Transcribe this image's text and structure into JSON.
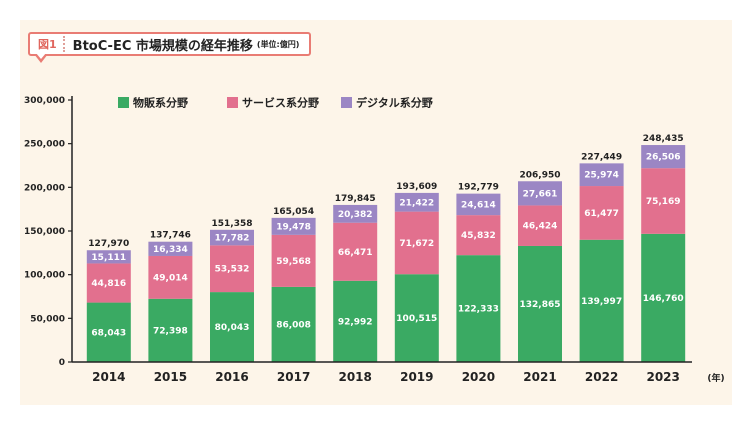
{
  "figure": {
    "label": "図1",
    "title": "BtoC-EC 市場規模の経年推移",
    "unit": "(単位:億円)"
  },
  "colors": {
    "goods": "#3aaa63",
    "services": "#e2708e",
    "digital": "#9b86c4",
    "background": "#fdf5e9",
    "accent": "#e97c74"
  },
  "chart_data": {
    "type": "bar",
    "stacked": true,
    "categories": [
      "2014",
      "2015",
      "2016",
      "2017",
      "2018",
      "2019",
      "2020",
      "2021",
      "2022",
      "2023"
    ],
    "series": [
      {
        "name": "物販系分野",
        "color": "#3aaa63",
        "label_color": "#ffffff",
        "values": [
          68043,
          72398,
          80043,
          86008,
          92992,
          100515,
          122333,
          132865,
          139997,
          146760
        ],
        "labels": [
          "68,043",
          "72,398",
          "80,043",
          "86,008",
          "92,992",
          "100,515",
          "122,333",
          "132,865",
          "139,997",
          "146,760"
        ]
      },
      {
        "name": "サービス系分野",
        "color": "#e2708e",
        "label_color": "#ffffff",
        "values": [
          44816,
          49014,
          53532,
          59568,
          66471,
          71672,
          45832,
          46424,
          61477,
          75169
        ],
        "labels": [
          "44,816",
          "49,014",
          "53,532",
          "59,568",
          "66,471",
          "71,672",
          "45,832",
          "46,424",
          "61,477",
          "75,169"
        ]
      },
      {
        "name": "デジタル系分野",
        "color": "#9b86c4",
        "label_color": "#ffffff",
        "values": [
          15111,
          16334,
          17782,
          19478,
          20382,
          21422,
          24614,
          27661,
          25974,
          26506
        ],
        "labels": [
          "15,111",
          "16,334",
          "17,782",
          "19,478",
          "20,382",
          "21,422",
          "24,614",
          "27,661",
          "25,974",
          "26,506"
        ]
      }
    ],
    "totals": [
      127970,
      137746,
      151358,
      165054,
      179845,
      193609,
      192779,
      206950,
      227449,
      248435
    ],
    "total_labels": [
      "127,970",
      "137,746",
      "151,358",
      "165,054",
      "179,845",
      "193,609",
      "192,779",
      "206,950",
      "227,449",
      "248,435"
    ],
    "ylim": [
      0,
      300000
    ],
    "y_ticks": [
      0,
      50000,
      100000,
      150000,
      200000,
      250000,
      300000
    ],
    "y_tick_labels": [
      "0",
      "50,000",
      "100,000",
      "150,000",
      "200,000",
      "250,000",
      "300,000"
    ],
    "x_unit": "(年)",
    "legend_position": "top-left",
    "grid": false
  }
}
